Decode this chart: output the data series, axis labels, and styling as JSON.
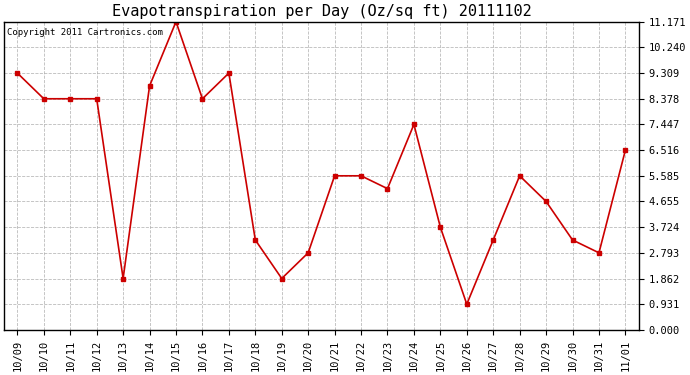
{
  "title": "Evapotranspiration per Day (Oz/sq ft) 20111102",
  "copyright": "Copyright 2011 Cartronics.com",
  "x_labels": [
    "10/09",
    "10/10",
    "10/11",
    "10/12",
    "10/13",
    "10/14",
    "10/15",
    "10/16",
    "10/17",
    "10/18",
    "10/19",
    "10/20",
    "10/21",
    "10/22",
    "10/23",
    "10/24",
    "10/25",
    "10/26",
    "10/27",
    "10/28",
    "10/29",
    "10/30",
    "10/31",
    "11/01"
  ],
  "y_values": [
    9.309,
    8.378,
    8.378,
    8.378,
    1.862,
    8.843,
    11.171,
    8.378,
    9.309,
    3.259,
    1.862,
    2.793,
    5.585,
    5.585,
    5.12,
    7.447,
    3.724,
    0.931,
    3.259,
    5.585,
    4.655,
    3.259,
    2.793,
    6.516
  ],
  "line_color": "#cc0000",
  "marker": "s",
  "marker_size": 3,
  "y_ticks": [
    0.0,
    0.931,
    1.862,
    2.793,
    3.724,
    4.655,
    5.585,
    6.516,
    7.447,
    8.378,
    9.309,
    10.24,
    11.171
  ],
  "ylim": [
    0.0,
    11.171
  ],
  "background_color": "#ffffff",
  "grid_color": "#aaaaaa",
  "title_fontsize": 11,
  "copyright_fontsize": 6.5,
  "tick_fontsize": 7.5
}
